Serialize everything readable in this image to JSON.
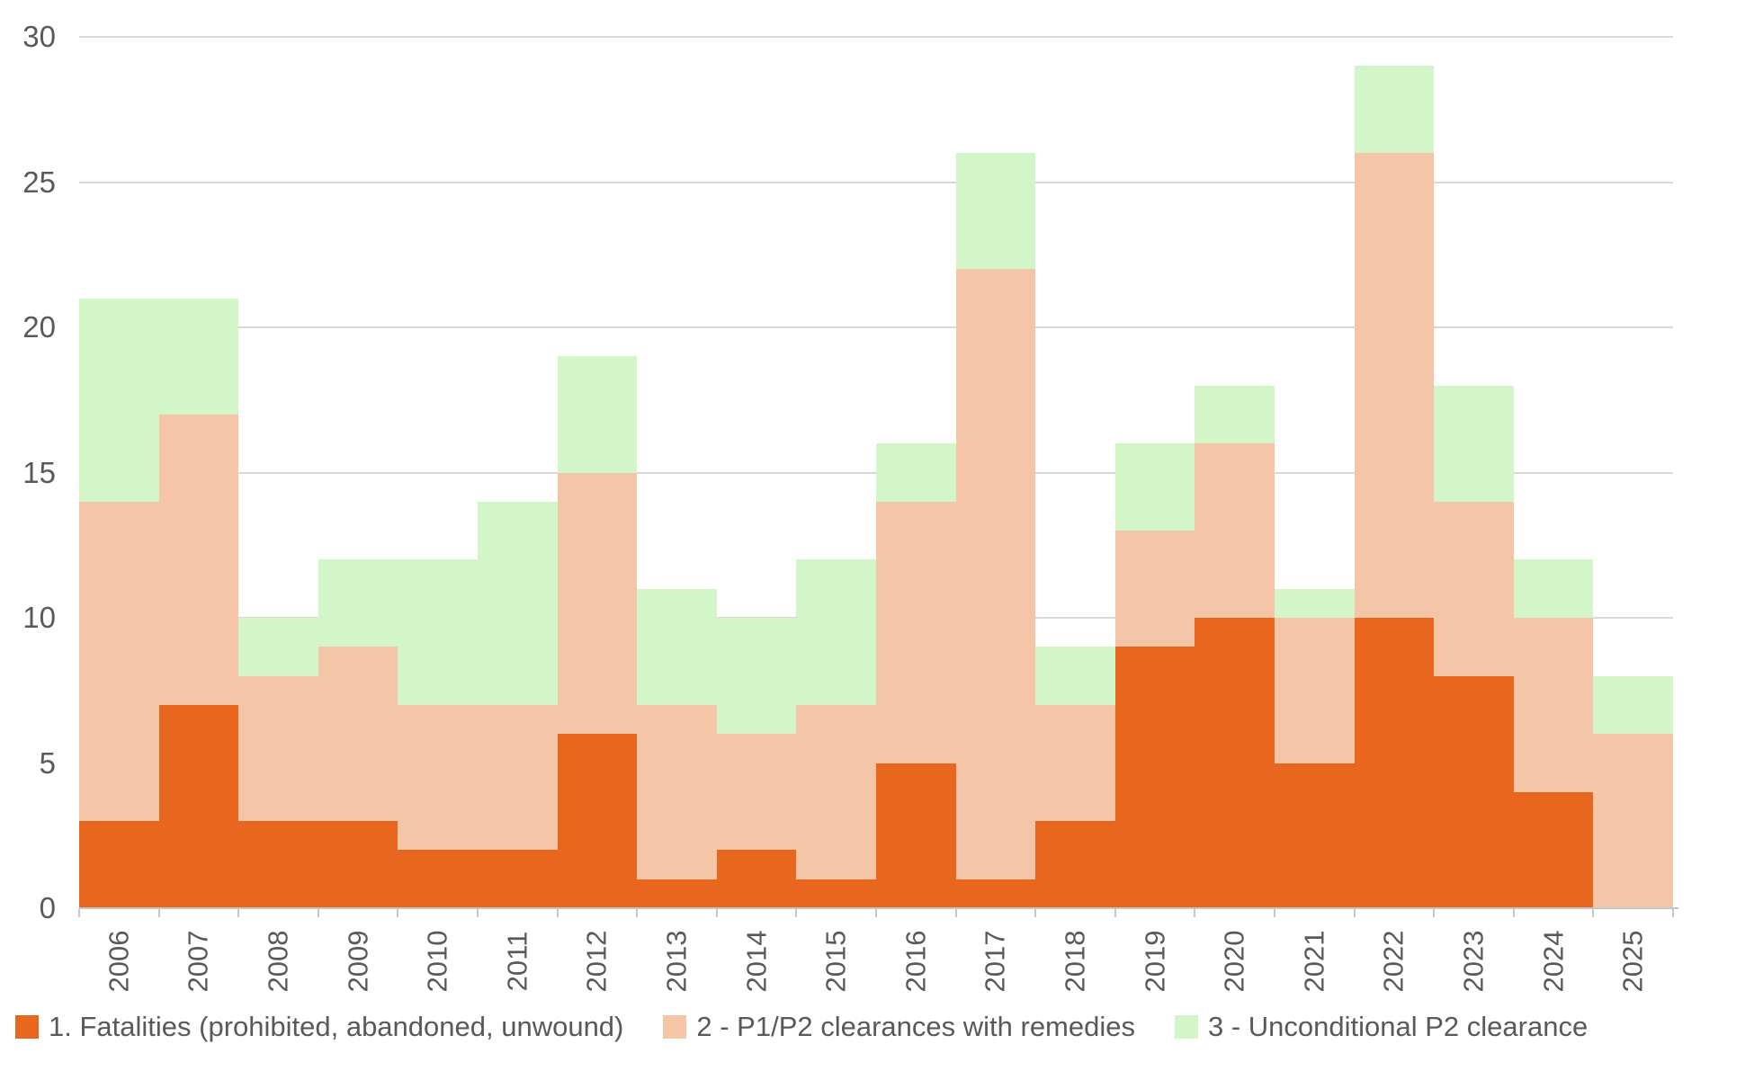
{
  "chart_data": {
    "type": "bar",
    "stacked": true,
    "bar_gap": 0,
    "title": "",
    "xlabel": "",
    "ylabel": "",
    "ylim": [
      0,
      30
    ],
    "y_ticks": [
      0,
      5,
      10,
      15,
      20,
      25,
      30
    ],
    "grid": "horizontal",
    "legend_position": "bottom",
    "categories": [
      "2006",
      "2007",
      "2008",
      "2009",
      "2010",
      "2011",
      "2012",
      "2013",
      "2014",
      "2015",
      "2016",
      "2017",
      "2018",
      "2019",
      "2020",
      "2021",
      "2022",
      "2023",
      "2024",
      "2025"
    ],
    "series": [
      {
        "name": "1. Fatalities (prohibited, abandoned, unwound)",
        "color": "#E9661E",
        "values": [
          3,
          7,
          3,
          3,
          2,
          2,
          6,
          1,
          2,
          1,
          5,
          1,
          3,
          9,
          10,
          5,
          10,
          8,
          4,
          0
        ]
      },
      {
        "name": "2 - P1/P2 clearances with remedies",
        "color": "#F4C5A7",
        "values": [
          11,
          10,
          5,
          6,
          5,
          5,
          9,
          6,
          4,
          6,
          9,
          21,
          4,
          4,
          6,
          5,
          16,
          6,
          6,
          6
        ]
      },
      {
        "name": "3 - Unconditional P2 clearance",
        "color": "#D3F6C9",
        "values": [
          7,
          4,
          2,
          3,
          5,
          7,
          4,
          4,
          4,
          5,
          2,
          4,
          2,
          3,
          2,
          1,
          3,
          4,
          2,
          2
        ]
      }
    ],
    "stacked_totals": [
      21,
      21,
      10,
      12,
      12,
      14,
      19,
      11,
      10,
      12,
      16,
      26,
      9,
      16,
      18,
      11,
      29,
      18,
      12,
      8
    ]
  },
  "colors": {
    "background": "#FFFFFF",
    "gridline": "#D9D9D9",
    "axis": "#C6C6C6",
    "axis_text": "#595959",
    "legend_text": "#595959"
  }
}
